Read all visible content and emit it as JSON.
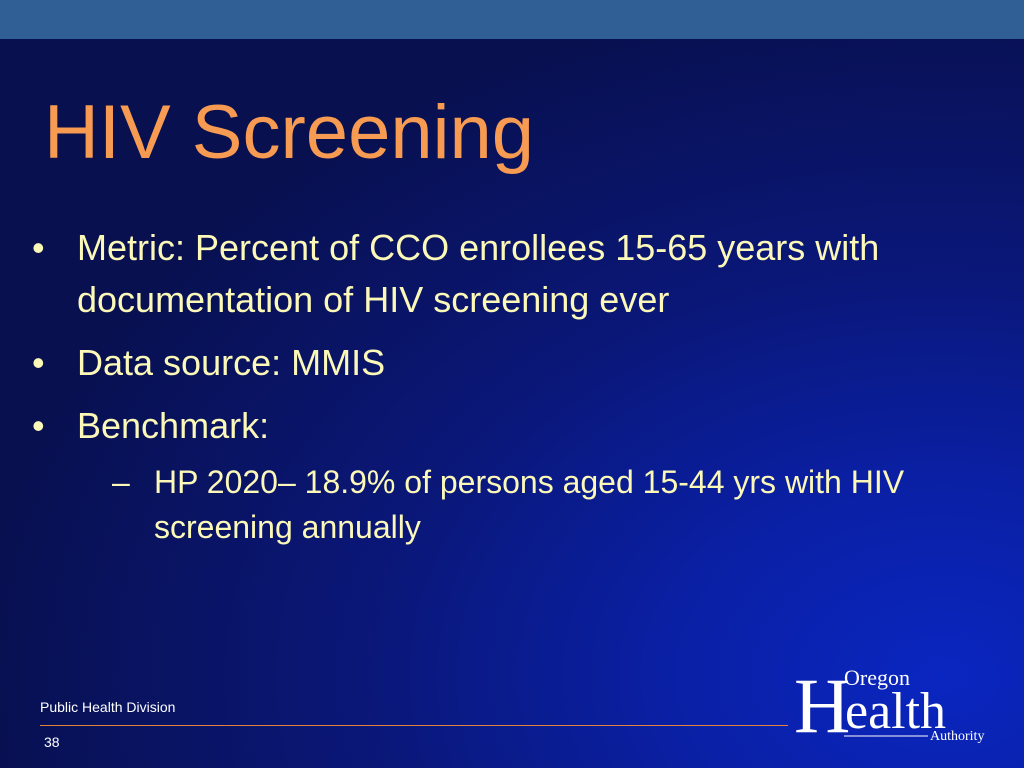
{
  "slide": {
    "title": "HIV Screening",
    "bullets": [
      {
        "marker": "•",
        "text": "Metric: Percent of CCO enrollees 15-65 years with documentation of HIV screening ever"
      },
      {
        "marker": "•",
        "text": "Data source: MMIS"
      },
      {
        "marker": "•",
        "text": "Benchmark:"
      }
    ],
    "sub_bullets": [
      {
        "marker": "–",
        "text": "HP 2020– 18.9% of persons aged 15-44 yrs with HIV screening annually"
      }
    ]
  },
  "footer": {
    "division": "Public Health Division",
    "page_number": "38"
  },
  "logo": {
    "line1": "Oregon",
    "line2_initial": "H",
    "line2_rest": "ealth",
    "line3": "Authority"
  },
  "colors": {
    "title": "#f79a52",
    "body_text": "#fbf8b8",
    "top_bar": "#2f5f94",
    "background": "#0a1a8a",
    "footer_rule": "#e2823d"
  }
}
